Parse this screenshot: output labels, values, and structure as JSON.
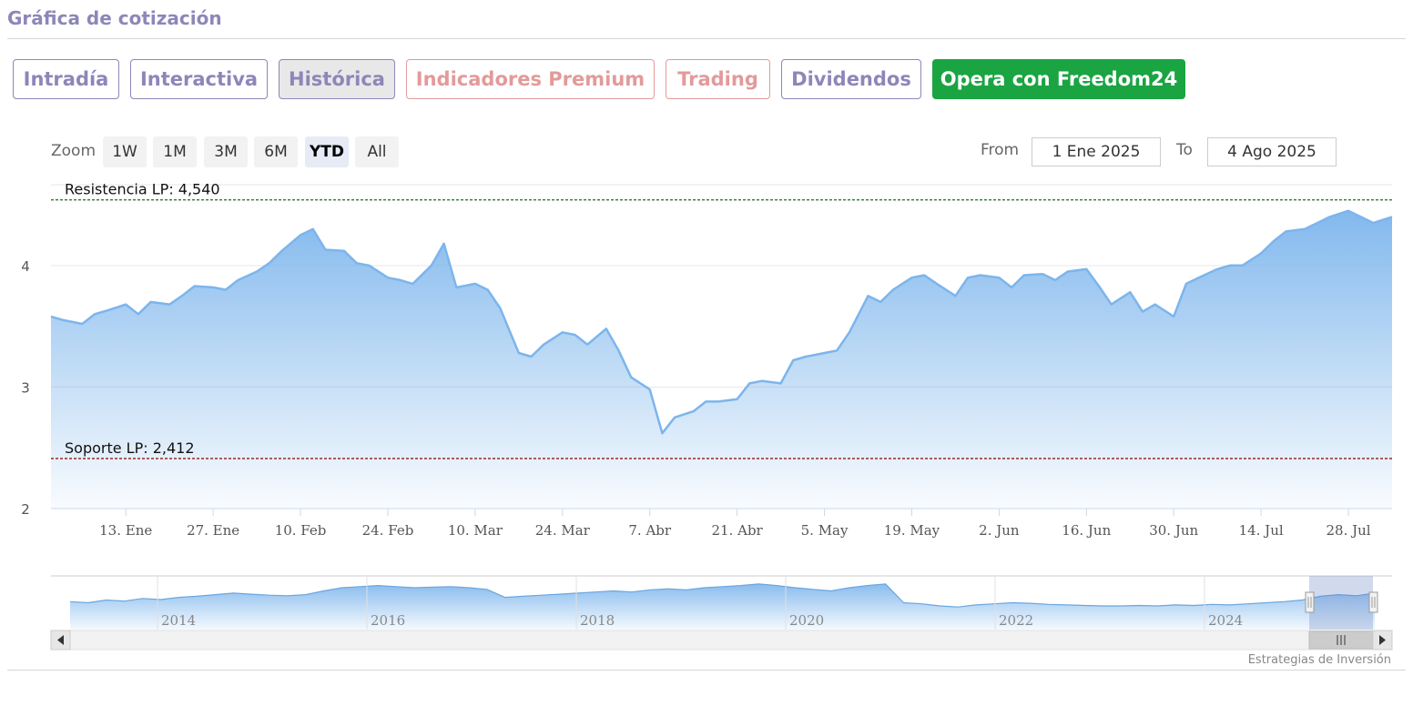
{
  "header": {
    "title": "Gráfica de cotización"
  },
  "tabs": [
    {
      "label": "Intradía",
      "state": "normal"
    },
    {
      "label": "Interactiva",
      "state": "normal"
    },
    {
      "label": "Histórica",
      "state": "active"
    },
    {
      "label": "Indicadores Premium",
      "state": "premium"
    },
    {
      "label": "Trading",
      "state": "premium"
    },
    {
      "label": "Dividendos",
      "state": "normal"
    },
    {
      "label": "Opera con Freedom24",
      "state": "cta"
    }
  ],
  "zoom": {
    "label": "Zoom",
    "options": [
      "1W",
      "1M",
      "3M",
      "6M",
      "YTD",
      "All"
    ],
    "selected": "YTD"
  },
  "range": {
    "from_label": "From",
    "from_value": "1 Ene 2025",
    "to_label": "To",
    "to_value": "4 Ago 2025"
  },
  "colors": {
    "accent": "#8c87b8",
    "premium": "#e39a9a",
    "cta": "#1aa442",
    "series_line": "#7cb5ec",
    "resistance_line": "#2e7d32",
    "support_line": "#8b0000"
  },
  "chart_data": {
    "type": "area",
    "title": "",
    "xlabel": "",
    "ylabel": "",
    "ylim": [
      2,
      4.65
    ],
    "yticks": [
      "4",
      "3",
      "2"
    ],
    "xticks": [
      "13. Ene",
      "27. Ene",
      "10. Feb",
      "24. Feb",
      "10. Mar",
      "24. Mar",
      "7. Abr",
      "21. Abr",
      "5. May",
      "19. May",
      "2. Jun",
      "16. Jun",
      "30. Jun",
      "14. Jul",
      "28. Jul"
    ],
    "grid": true,
    "legend": "none",
    "series": [
      {
        "x": [
          "2025-01-01",
          "2025-01-03",
          "2025-01-06",
          "2025-01-08",
          "2025-01-10",
          "2025-01-13",
          "2025-01-15",
          "2025-01-17",
          "2025-01-20",
          "2025-01-22",
          "2025-01-24",
          "2025-01-27",
          "2025-01-29",
          "2025-01-31",
          "2025-02-03",
          "2025-02-05",
          "2025-02-07",
          "2025-02-10",
          "2025-02-12",
          "2025-02-14",
          "2025-02-17",
          "2025-02-19",
          "2025-02-21",
          "2025-02-24",
          "2025-02-26",
          "2025-02-28",
          "2025-03-03",
          "2025-03-05",
          "2025-03-07",
          "2025-03-10",
          "2025-03-12",
          "2025-03-14",
          "2025-03-17",
          "2025-03-19",
          "2025-03-21",
          "2025-03-24",
          "2025-03-26",
          "2025-03-28",
          "2025-03-31",
          "2025-04-02",
          "2025-04-04",
          "2025-04-07",
          "2025-04-09",
          "2025-04-11",
          "2025-04-14",
          "2025-04-16",
          "2025-04-18",
          "2025-04-21",
          "2025-04-23",
          "2025-04-25",
          "2025-04-28",
          "2025-04-30",
          "2025-05-02",
          "2025-05-05",
          "2025-05-07",
          "2025-05-09",
          "2025-05-12",
          "2025-05-14",
          "2025-05-16",
          "2025-05-19",
          "2025-05-21",
          "2025-05-23",
          "2025-05-26",
          "2025-05-28",
          "2025-05-30",
          "2025-06-02",
          "2025-06-04",
          "2025-06-06",
          "2025-06-09",
          "2025-06-11",
          "2025-06-13",
          "2025-06-16",
          "2025-06-18",
          "2025-06-20",
          "2025-06-23",
          "2025-06-25",
          "2025-06-27",
          "2025-06-30",
          "2025-07-02",
          "2025-07-04",
          "2025-07-07",
          "2025-07-09",
          "2025-07-11",
          "2025-07-14",
          "2025-07-16",
          "2025-07-18",
          "2025-07-21",
          "2025-07-23",
          "2025-07-25",
          "2025-07-28",
          "2025-07-30",
          "2025-08-01",
          "2025-08-04"
        ],
        "values": [
          3.58,
          3.55,
          3.52,
          3.6,
          3.63,
          3.68,
          3.6,
          3.7,
          3.68,
          3.75,
          3.83,
          3.82,
          3.8,
          3.88,
          3.95,
          4.02,
          4.12,
          4.25,
          4.3,
          4.13,
          4.12,
          4.02,
          4.0,
          3.9,
          3.88,
          3.85,
          4.0,
          4.18,
          3.82,
          3.85,
          3.8,
          3.65,
          3.28,
          3.25,
          3.35,
          3.45,
          3.43,
          3.35,
          3.48,
          3.3,
          3.08,
          2.98,
          2.62,
          2.75,
          2.8,
          2.88,
          2.88,
          2.9,
          3.03,
          3.05,
          3.03,
          3.22,
          3.25,
          3.28,
          3.3,
          3.45,
          3.75,
          3.7,
          3.8,
          3.9,
          3.92,
          3.85,
          3.75,
          3.9,
          3.92,
          3.9,
          3.82,
          3.92,
          3.93,
          3.88,
          3.95,
          3.97,
          3.83,
          3.68,
          3.78,
          3.62,
          3.68,
          3.58,
          3.85,
          3.9,
          3.97,
          4.0,
          4.0,
          4.1,
          4.2,
          4.28,
          4.3,
          4.35,
          4.4,
          4.45,
          4.4,
          4.35,
          4.4
        ]
      }
    ],
    "annotations": [
      {
        "label": "Resistencia LP: 4,540",
        "value": 4.54
      },
      {
        "label": "Soporte LP: 2,412",
        "value": 2.412
      }
    ]
  },
  "navigator": {
    "year_labels": [
      "2014",
      "2016",
      "2018",
      "2020",
      "2022",
      "2024"
    ],
    "values": [
      0.52,
      0.5,
      0.55,
      0.53,
      0.58,
      0.56,
      0.6,
      0.62,
      0.65,
      0.68,
      0.66,
      0.64,
      0.63,
      0.65,
      0.72,
      0.78,
      0.8,
      0.82,
      0.8,
      0.78,
      0.79,
      0.8,
      0.78,
      0.75,
      0.6,
      0.62,
      0.64,
      0.66,
      0.68,
      0.7,
      0.72,
      0.7,
      0.74,
      0.76,
      0.74,
      0.78,
      0.8,
      0.82,
      0.85,
      0.82,
      0.78,
      0.75,
      0.72,
      0.78,
      0.82,
      0.85,
      0.5,
      0.48,
      0.44,
      0.42,
      0.46,
      0.48,
      0.5,
      0.49,
      0.47,
      0.46,
      0.45,
      0.44,
      0.44,
      0.45,
      0.44,
      0.46,
      0.45,
      0.47,
      0.46,
      0.48,
      0.5,
      0.52,
      0.55,
      0.62,
      0.65,
      0.63,
      0.68
    ]
  },
  "credit": {
    "text": "Estrategias de Inversión"
  }
}
